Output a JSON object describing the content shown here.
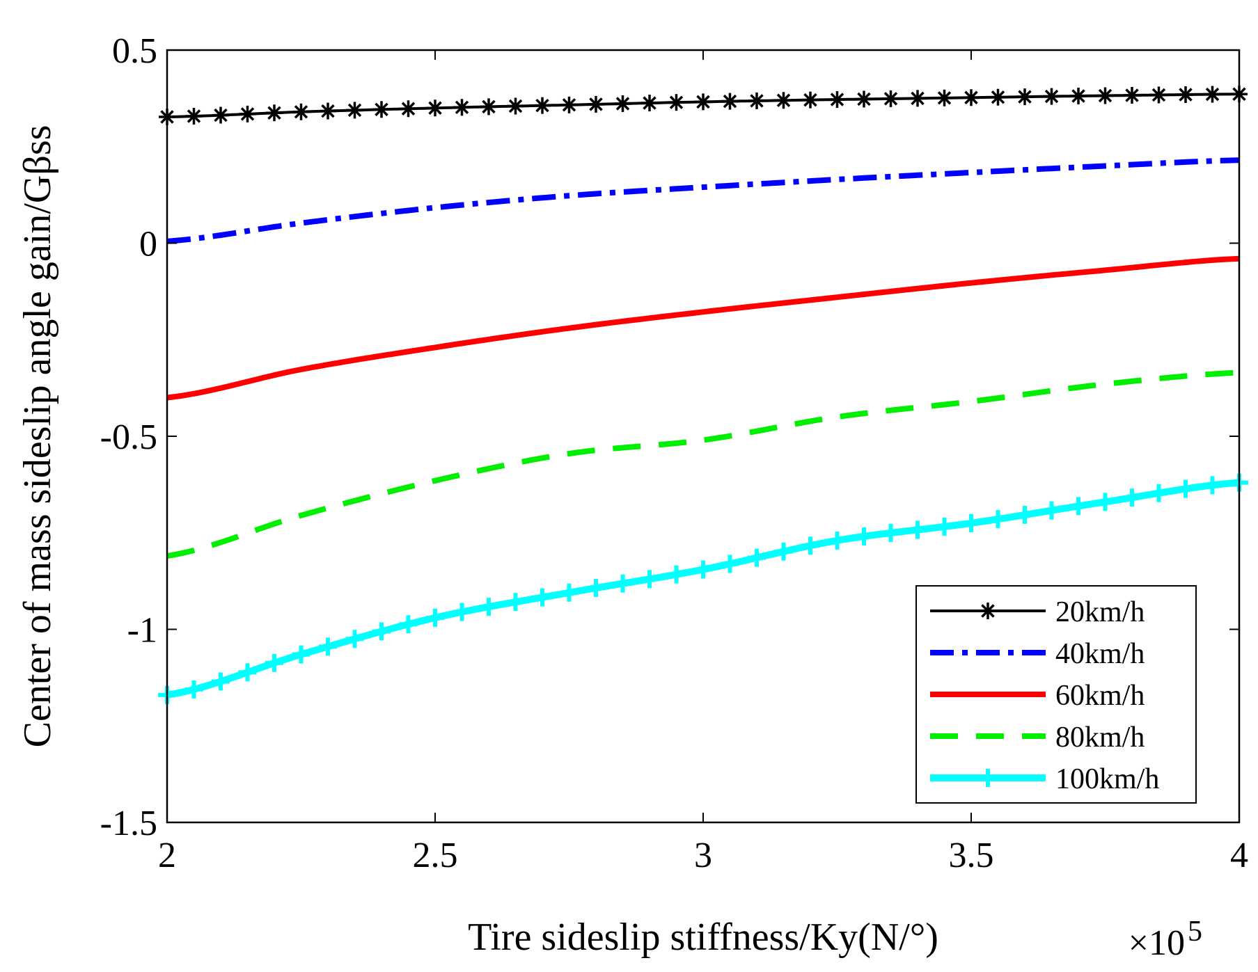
{
  "chart_data": {
    "type": "line",
    "title": "",
    "xlabel": "Tire sideslip stiffness/Ky(N/°)",
    "ylabel": "Center of mass sideslip angle gain/Gβss",
    "x_multiplier_label": "×10",
    "x_multiplier_exponent": "5",
    "xlim": [
      2,
      4
    ],
    "ylim": [
      -1.5,
      0.5
    ],
    "x_ticks": [
      2,
      2.5,
      3,
      3.5,
      4
    ],
    "x_tick_labels": [
      "2",
      "2.5",
      "3",
      "3.5",
      "4"
    ],
    "y_ticks": [
      -1.5,
      -1,
      -0.5,
      0,
      0.5
    ],
    "y_tick_labels": [
      "-1.5",
      "-1",
      "-0.5",
      "0",
      "0.5"
    ],
    "grid": false,
    "legend_position": "bottom-right",
    "x": [
      2.0,
      2.25,
      2.5,
      2.75,
      3.0,
      3.25,
      3.5,
      3.75,
      4.0
    ],
    "series": [
      {
        "name": "20km/h",
        "color": "#000000",
        "style": "solid-asterisk",
        "values": [
          0.327,
          0.34,
          0.35,
          0.358,
          0.366,
          0.372,
          0.377,
          0.382,
          0.386
        ]
      },
      {
        "name": "40km/h",
        "color": "#0000ff",
        "style": "dash-dot",
        "values": [
          0.005,
          0.052,
          0.092,
          0.123,
          0.145,
          0.165,
          0.183,
          0.2,
          0.215
        ]
      },
      {
        "name": "60km/h",
        "color": "#ff0000",
        "style": "solid",
        "values": [
          -0.4,
          -0.327,
          -0.27,
          -0.22,
          -0.178,
          -0.14,
          -0.103,
          -0.07,
          -0.04
        ]
      },
      {
        "name": "80km/h",
        "color": "#00ee00",
        "style": "dashed",
        "values": [
          -0.81,
          -0.705,
          -0.615,
          -0.545,
          -0.51,
          -0.45,
          -0.41,
          -0.365,
          -0.335
        ]
      },
      {
        "name": "100km/h",
        "color": "#00ffff",
        "style": "solid-plus",
        "values": [
          -1.17,
          -1.065,
          -0.97,
          -0.905,
          -0.845,
          -0.77,
          -0.725,
          -0.67,
          -0.62
        ]
      }
    ]
  }
}
